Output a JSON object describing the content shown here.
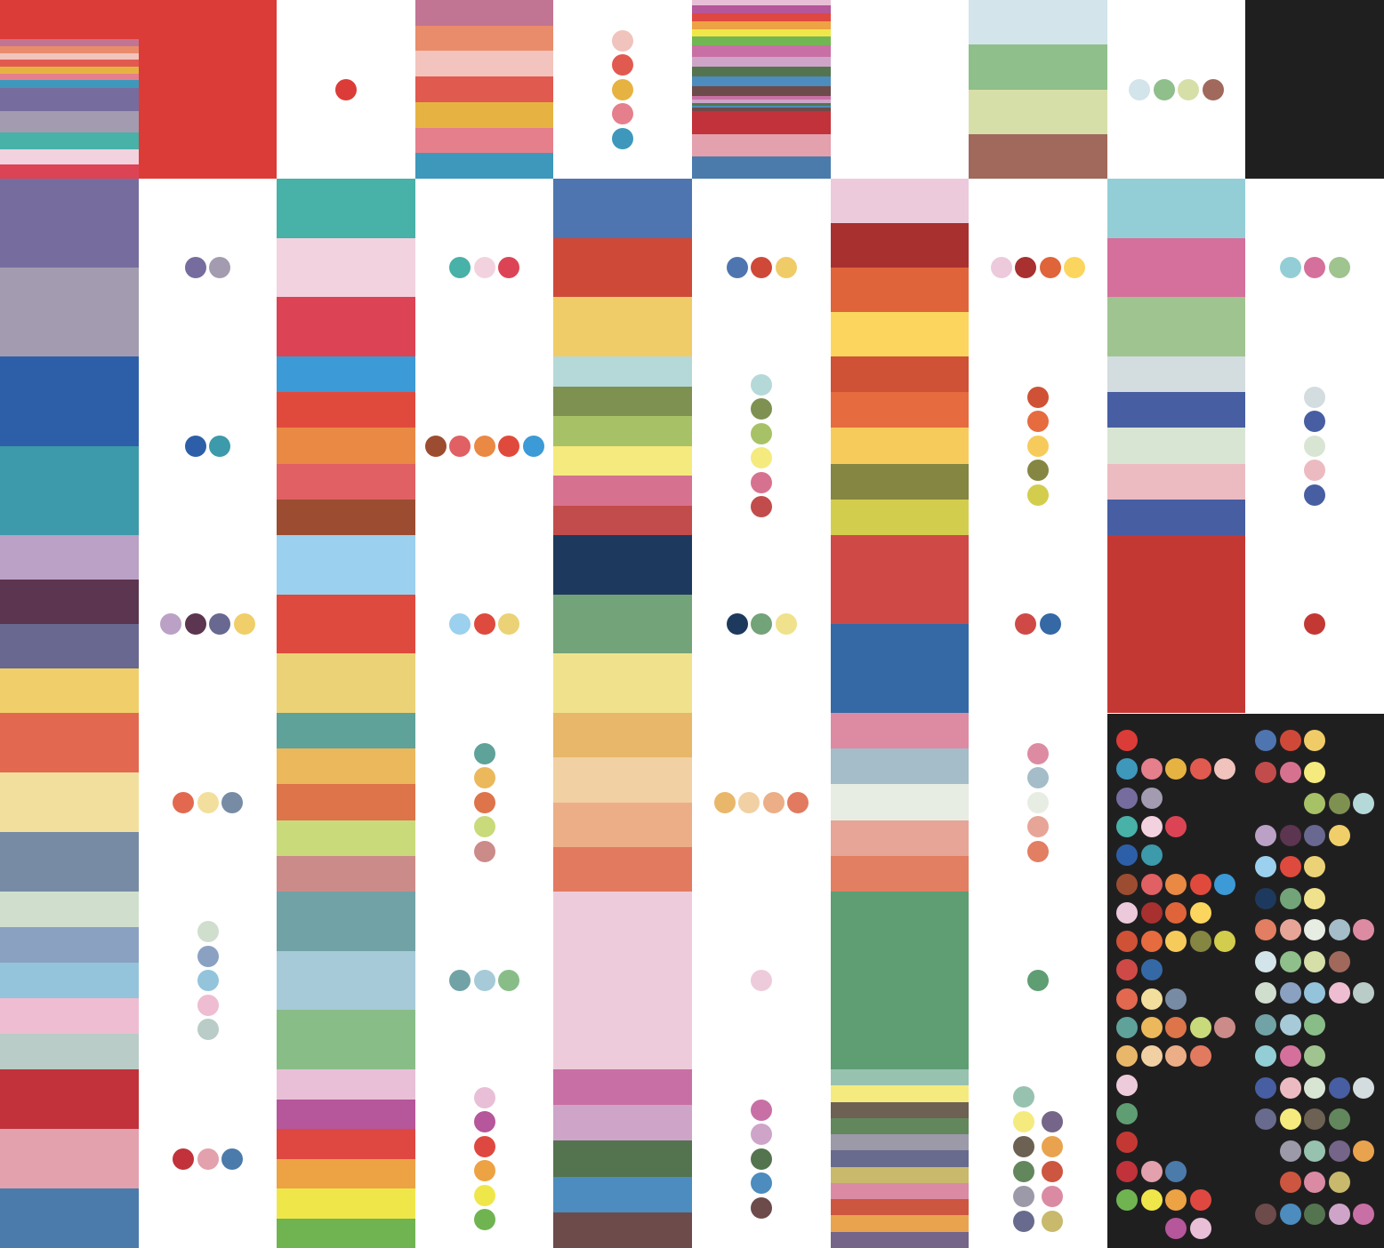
{
  "colors": {
    "background": "#ffffff",
    "panel": "#201f20"
  },
  "grid": {
    "columns": 10,
    "rows": 7
  },
  "cells": [
    {
      "type": "stripes",
      "colors": [
        "#dc3c37",
        "#c27493",
        "#e98c6b",
        "#f2c4bd",
        "#e15a50",
        "#e6b342",
        "#e57f8c",
        "#3e98bb",
        "#766d9e",
        "#a39bb0",
        "#48b1a8",
        "#f3d2df",
        "#dc4455"
      ]
    },
    {
      "type": "solid",
      "colors": [
        "#dc3c37"
      ]
    },
    {
      "type": "dots",
      "layout": "row",
      "colors": [
        "#dc3c37"
      ]
    },
    {
      "type": "stripes",
      "colors": [
        "#c27493",
        "#e98c6b",
        "#f2c4bd",
        "#e15a50",
        "#e6b342",
        "#e57f8c",
        "#3e98bb"
      ]
    },
    {
      "type": "dots",
      "layout": "col",
      "colors": [
        "#f0c3bd",
        "#e15a50",
        "#e6b342",
        "#e57f8c",
        "#3e98bb"
      ]
    },
    {
      "type": "stripes",
      "colors": [
        "#e9bfd7",
        "#b6569b",
        "#df4841",
        "#eda243",
        "#efe74a",
        "#72b654",
        "#c870a5",
        "#cea5c9",
        "#54744f",
        "#4c8cbe",
        "#6d4b4a",
        "#c870a5",
        "#cea5c9",
        "#54744f",
        "#4c8cbe",
        "#6d4b4a",
        "#c1323a",
        "#e3a0ad",
        "#4a7bab"
      ]
    },
    {
      "type": "empty",
      "colors": []
    },
    {
      "type": "stripes",
      "colors": [
        "#d3e4ea",
        "#8fbf8b",
        "#d7dfa8",
        "#a0695c"
      ]
    },
    {
      "type": "dots",
      "layout": "row",
      "colors": [
        "#d3e4ea",
        "#8fbf8b",
        "#d7dfa8",
        "#a0695c"
      ]
    },
    {
      "type": "solid",
      "colors": [
        "#201f20"
      ]
    },
    {
      "type": "stripes",
      "colors": [
        "#766d9e",
        "#a39bb0"
      ]
    },
    {
      "type": "dots",
      "layout": "row",
      "colors": [
        "#766d9e",
        "#a39bb0"
      ]
    },
    {
      "type": "stripes",
      "colors": [
        "#48b1a8",
        "#f3d2df",
        "#dc4455"
      ]
    },
    {
      "type": "dots",
      "layout": "row",
      "colors": [
        "#48b1a8",
        "#f3d2df",
        "#dc4455"
      ]
    },
    {
      "type": "stripes",
      "colors": [
        "#4e75b0",
        "#cf4939",
        "#f0cc68"
      ]
    },
    {
      "type": "dots",
      "layout": "row",
      "colors": [
        "#4e75b0",
        "#cf4939",
        "#f0cc68"
      ]
    },
    {
      "type": "stripes",
      "colors": [
        "#eccadb",
        "#a8302f",
        "#e0643a",
        "#fbd55e"
      ]
    },
    {
      "type": "dots",
      "layout": "row",
      "colors": [
        "#eccadb",
        "#a8302f",
        "#e0643a",
        "#fbd55e"
      ]
    },
    {
      "type": "stripes",
      "colors": [
        "#93ced6",
        "#d4709b",
        "#a0c48f"
      ]
    },
    {
      "type": "dots",
      "layout": "row",
      "colors": [
        "#93ced6",
        "#d4709b",
        "#a0c48f"
      ]
    },
    {
      "type": "stripes",
      "colors": [
        "#2d5fa8",
        "#3c9aaa"
      ]
    },
    {
      "type": "dots",
      "layout": "row",
      "colors": [
        "#2d5fa8",
        "#3c9aaa"
      ]
    },
    {
      "type": "stripes",
      "colors": [
        "#3c9ad6",
        "#e04a3d",
        "#e98944",
        "#e06063",
        "#9c4d31"
      ]
    },
    {
      "type": "dots",
      "layout": "row",
      "colors": [
        "#9c4d31",
        "#e06063",
        "#e98944",
        "#e04a3d",
        "#3c9ad6"
      ]
    },
    {
      "type": "stripes",
      "colors": [
        "#b5d9d8",
        "#7e9151",
        "#a7c266",
        "#f5ea7e",
        "#d6728f",
        "#c24c4b"
      ]
    },
    {
      "type": "dots",
      "layout": "col",
      "colors": [
        "#b5d9d8",
        "#7e9151",
        "#a7c266",
        "#f5ea7e",
        "#d6728f",
        "#c24c4b"
      ]
    },
    {
      "type": "stripes",
      "colors": [
        "#cf5136",
        "#e66b3f",
        "#f7cb5b",
        "#858641",
        "#d3cd4e"
      ]
    },
    {
      "type": "dots",
      "layout": "col",
      "colors": [
        "#cf5136",
        "#e66b3f",
        "#f7cb5b",
        "#858641",
        "#d3cd4e"
      ]
    },
    {
      "type": "stripes",
      "colors": [
        "#d3dcdf",
        "#475ea2",
        "#d9e5d3",
        "#ecbbc1",
        "#475ea2"
      ]
    },
    {
      "type": "dots",
      "layout": "col",
      "colors": [
        "#d3dcdf",
        "#475ea2",
        "#d9e5d3",
        "#ecbbc1",
        "#475ea2"
      ]
    },
    {
      "type": "stripes",
      "colors": [
        "#bba1c6",
        "#5c3550",
        "#686891",
        "#f0cf6a"
      ]
    },
    {
      "type": "dots",
      "layout": "row",
      "colors": [
        "#bba1c6",
        "#5c3550",
        "#686891",
        "#f0cf6a"
      ]
    },
    {
      "type": "stripes",
      "colors": [
        "#9bd0ee",
        "#de4a3d",
        "#ecd276"
      ]
    },
    {
      "type": "dots",
      "layout": "row",
      "colors": [
        "#9bd0ee",
        "#de4a3d",
        "#ecd276"
      ]
    },
    {
      "type": "stripes",
      "colors": [
        "#1d3a5e",
        "#72a379",
        "#f0e28c"
      ]
    },
    {
      "type": "dots",
      "layout": "row",
      "colors": [
        "#1d3a5e",
        "#72a379",
        "#f0e28c"
      ]
    },
    {
      "type": "stripes",
      "colors": [
        "#cf4a47",
        "#3569a6"
      ]
    },
    {
      "type": "dots",
      "layout": "row",
      "colors": [
        "#cf4a47",
        "#3569a6"
      ]
    },
    {
      "type": "solid",
      "colors": [
        "#c43834"
      ]
    },
    {
      "type": "dots",
      "layout": "row",
      "colors": [
        "#c43834"
      ]
    },
    {
      "type": "stripes",
      "colors": [
        "#e2694f",
        "#f3df9d",
        "#778ca4"
      ]
    },
    {
      "type": "dots",
      "layout": "row",
      "colors": [
        "#e2694f",
        "#f3df9d",
        "#778ca4"
      ]
    },
    {
      "type": "stripes",
      "colors": [
        "#5ea29a",
        "#ebb85b",
        "#dd744a",
        "#c9da7b",
        "#cb8b89"
      ]
    },
    {
      "type": "dots",
      "layout": "col",
      "colors": [
        "#5ea29a",
        "#ebb85b",
        "#dd744a",
        "#c9da7b",
        "#cb8b89"
      ]
    },
    {
      "type": "stripes",
      "colors": [
        "#e9b769",
        "#f1d0a4",
        "#ecae86",
        "#e27a60"
      ]
    },
    {
      "type": "dots",
      "layout": "row",
      "colors": [
        "#e9b769",
        "#f1d0a4",
        "#ecae86",
        "#e27a60"
      ]
    },
    {
      "type": "stripes",
      "colors": [
        "#dd8ba3",
        "#a4bdc8",
        "#e8ede3",
        "#e7a597",
        "#e27e62"
      ]
    },
    {
      "type": "dots",
      "layout": "col",
      "colors": [
        "#dd8ba3",
        "#a4bdc8",
        "#e8ede3",
        "#e7a597",
        "#e27e62"
      ]
    },
    {
      "type": "panel",
      "colors": []
    },
    {
      "type": "panel",
      "colors": []
    },
    {
      "type": "stripes",
      "colors": [
        "#d0dfcd",
        "#8aa1c2",
        "#94c4dc",
        "#eebdd1",
        "#b9ccc7"
      ]
    },
    {
      "type": "dots",
      "layout": "col",
      "colors": [
        "#d0dfcd",
        "#8aa1c2",
        "#94c4dc",
        "#eebdd1",
        "#b9ccc7"
      ]
    },
    {
      "type": "stripes",
      "colors": [
        "#71a2a6",
        "#a6cad8",
        "#89bd88"
      ]
    },
    {
      "type": "dots",
      "layout": "row",
      "colors": [
        "#71a2a6",
        "#a6cad8",
        "#89bd88"
      ]
    },
    {
      "type": "solid",
      "colors": [
        "#eecbdb"
      ]
    },
    {
      "type": "dots",
      "layout": "row",
      "colors": [
        "#eecbdb"
      ]
    },
    {
      "type": "solid",
      "colors": [
        "#5f9d73"
      ]
    },
    {
      "type": "dots",
      "layout": "row",
      "colors": [
        "#5f9d73"
      ]
    },
    {
      "type": "panel",
      "colors": []
    },
    {
      "type": "panel",
      "colors": []
    },
    {
      "type": "stripes",
      "colors": [
        "#c1323a",
        "#e3a0ad",
        "#4a7bab"
      ]
    },
    {
      "type": "dots",
      "layout": "row",
      "colors": [
        "#c1323a",
        "#e3a0ad",
        "#4a7bab"
      ]
    },
    {
      "type": "stripes",
      "colors": [
        "#e8bfd7",
        "#b6569b",
        "#df4841",
        "#eda243",
        "#efe74a",
        "#70b452"
      ]
    },
    {
      "type": "dots",
      "layout": "col",
      "colors": [
        "#e8bfd7",
        "#b6569b",
        "#df4841",
        "#eda243",
        "#efe74a",
        "#70b452"
      ]
    },
    {
      "type": "stripes",
      "colors": [
        "#c870a5",
        "#cea5c9",
        "#54744f",
        "#4c8cbe",
        "#6d4b4a"
      ]
    },
    {
      "type": "dots",
      "layout": "col",
      "colors": [
        "#c870a5",
        "#cea5c9",
        "#54744f",
        "#4c8cbe",
        "#6d4b4a"
      ]
    },
    {
      "type": "stripes",
      "colors": [
        "#97c2b0",
        "#f5ea7e",
        "#6c6152",
        "#63875c",
        "#9c99a9",
        "#686b8d",
        "#c8b96c",
        "#da8ba3",
        "#cd5640",
        "#e9a34e",
        "#746589"
      ]
    },
    {
      "type": "dots",
      "layout": "grid2",
      "colors": [
        "#97c2b0",
        "#f5ea7e",
        "#6c6152",
        "#63875c",
        "#9c99a9",
        "#686b8d",
        "#746589",
        "#e9a34e",
        "#cd5640",
        "#da8ba3",
        "#c8b96c"
      ]
    },
    {
      "type": "panel",
      "colors": []
    },
    {
      "type": "panel",
      "colors": []
    }
  ],
  "summary_panel": {
    "left": [
      {
        "colors": [
          "#dc3c37"
        ]
      },
      {
        "colors": [
          "#3e98bb",
          "#e57f8c",
          "#e6b342",
          "#e15a50",
          "#f0c3bd"
        ]
      },
      {
        "colors": [
          "#766d9e",
          "#a39bb0"
        ]
      },
      {
        "colors": [
          "#48b1a8",
          "#f3d2df",
          "#dc4455"
        ]
      },
      {
        "colors": [
          "#2d5fa8",
          "#3c9aaa"
        ]
      },
      {
        "colors": [
          "#9c4d31",
          "#e06063",
          "#e98944",
          "#e04a3d",
          "#3c9ad6"
        ]
      },
      {
        "colors": [
          "#eccadb",
          "#a8302f",
          "#e0643a",
          "#fbd55e"
        ]
      },
      {
        "colors": [
          "#cf5136",
          "#e66b3f",
          "#f7cb5b",
          "#858641",
          "#d3cd4e"
        ]
      },
      {
        "colors": [
          "#cf4a47",
          "#3569a6"
        ]
      },
      {
        "colors": [
          "#e2694f",
          "#f3df9d",
          "#778ca4"
        ]
      },
      {
        "colors": [
          "#5ea29a",
          "#ebb85b",
          "#dd744a",
          "#c9da7b",
          "#cb8b89"
        ]
      },
      {
        "colors": [
          "#e9b769",
          "#f1d0a4",
          "#ecae86",
          "#e27a60"
        ]
      },
      {
        "colors": [
          "#eecbdb"
        ]
      },
      {
        "colors": [
          "#5f9d73"
        ]
      },
      {
        "colors": [
          "#c43834"
        ]
      },
      {
        "colors": [
          "#c1323a",
          "#e3a0ad",
          "#4a7bab"
        ]
      },
      {
        "colors": [
          "#70b452",
          "#efe74a",
          "#eda243",
          "#df4841"
        ]
      },
      {
        "colors": [
          "#b6569b",
          "#e8bfd7"
        ],
        "indent": 2
      }
    ],
    "right": [
      {
        "colors": [
          "#4e75b0",
          "#cf4939",
          "#f0cc68"
        ]
      },
      {
        "colors": [
          "#c24c4b",
          "#d6728f",
          "#f5ea7e"
        ]
      },
      {
        "colors": [
          "#a7c266",
          "#7e9151",
          "#b5d9d8"
        ],
        "indent": 2
      },
      {
        "colors": [
          "#bba1c6",
          "#5c3550",
          "#686891",
          "#f0cf6a"
        ]
      },
      {
        "colors": [
          "#9bd0ee",
          "#de4a3d",
          "#ecd276"
        ]
      },
      {
        "colors": [
          "#1d3a5e",
          "#72a379",
          "#f0e28c"
        ]
      },
      {
        "colors": [
          "#e27e62",
          "#e7a597",
          "#e8ede3",
          "#a4bdc8",
          "#dd8ba3"
        ]
      },
      {
        "colors": [
          "#d3e4ea",
          "#8fbf8b",
          "#d7dfa8",
          "#a0695c"
        ]
      },
      {
        "colors": [
          "#d0dfcd",
          "#8aa1c2",
          "#94c4dc",
          "#eebdd1",
          "#b9ccc7"
        ]
      },
      {
        "colors": [
          "#71a2a6",
          "#a6cad8",
          "#89bd88"
        ]
      },
      {
        "colors": [
          "#93ced6",
          "#d4709b",
          "#a0c48f"
        ]
      },
      {
        "colors": [
          "#475ea2",
          "#ecbbc1",
          "#d9e5d3",
          "#475ea2",
          "#d3dcdf"
        ]
      },
      {
        "colors": [
          "#686b8d",
          "#f5ea7e",
          "#6c6152",
          "#63875c"
        ]
      },
      {
        "colors": [
          "#9c99a9",
          "#97c2b0",
          "#746589",
          "#e9a34e"
        ],
        "indent": 1
      },
      {
        "colors": [
          "#cd5640",
          "#da8ba3",
          "#c8b96c"
        ],
        "indent": 1
      },
      {
        "colors": [
          "#6d4b4a",
          "#4c8cbe",
          "#54744f",
          "#cea5c9",
          "#c870a5"
        ]
      }
    ]
  }
}
